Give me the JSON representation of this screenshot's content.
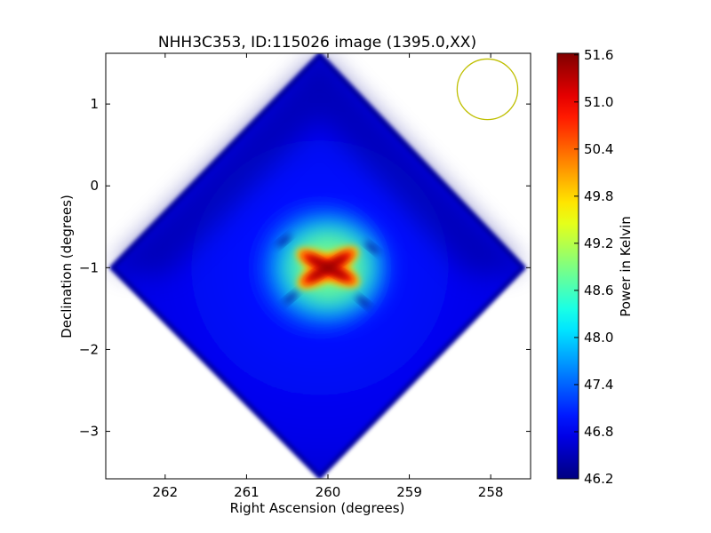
{
  "chart_data": {
    "type": "heatmap",
    "title": "NHH3C353, ID:115026 image (1395.0,XX)",
    "xlabel": "Right Ascension (degrees)",
    "ylabel": "Declination (degrees)",
    "colorbar_label": "Power in Kelvin",
    "x_reversed": true,
    "xlim": [
      262.73,
      257.51
    ],
    "ylim": [
      -3.58,
      1.62
    ],
    "x_ticks": [
      {
        "value": 262,
        "label": "262"
      },
      {
        "value": 261,
        "label": "261"
      },
      {
        "value": 260,
        "label": "260"
      },
      {
        "value": 259,
        "label": "259"
      },
      {
        "value": 258,
        "label": "258"
      }
    ],
    "y_ticks": [
      {
        "value": 1,
        "label": "1"
      },
      {
        "value": 0,
        "label": "0"
      },
      {
        "value": -1,
        "label": "−1"
      },
      {
        "value": -2,
        "label": "−2"
      },
      {
        "value": -3,
        "label": "−3"
      }
    ],
    "colorbar_range": [
      46.2,
      51.62
    ],
    "colorbar_ticks": [
      {
        "value": 46.2,
        "label": "46.2"
      },
      {
        "value": 46.8,
        "label": "46.8"
      },
      {
        "value": 47.4,
        "label": "47.4"
      },
      {
        "value": 48.0,
        "label": "48.0"
      },
      {
        "value": 48.6,
        "label": "48.6"
      },
      {
        "value": 49.2,
        "label": "49.2"
      },
      {
        "value": 49.8,
        "label": "49.8"
      },
      {
        "value": 50.4,
        "label": "50.4"
      },
      {
        "value": 51.0,
        "label": "51.0"
      },
      {
        "value": 51.6,
        "label": "51.6"
      }
    ],
    "colormap": "jet",
    "colors": {
      "background": "#ffffff",
      "beam_circle": "#bfbf00",
      "field_base": "#0a2cff"
    },
    "field": {
      "shape": "diamond",
      "center": {
        "ra": 260.1,
        "dec": -1.0
      },
      "vertices": [
        {
          "ra": 260.1,
          "dec": 1.6
        },
        {
          "ra": 257.6,
          "dec": -1.0
        },
        {
          "ra": 260.1,
          "dec": -3.55
        },
        {
          "ra": 262.65,
          "dec": -1.0
        }
      ],
      "background_level": 46.8,
      "peak_level": 51.6
    },
    "source": {
      "ra": 260.0,
      "dec": -1.0
    },
    "beam": {
      "ra": 258.04,
      "dec": 1.18,
      "radius_deg": 0.37
    }
  }
}
